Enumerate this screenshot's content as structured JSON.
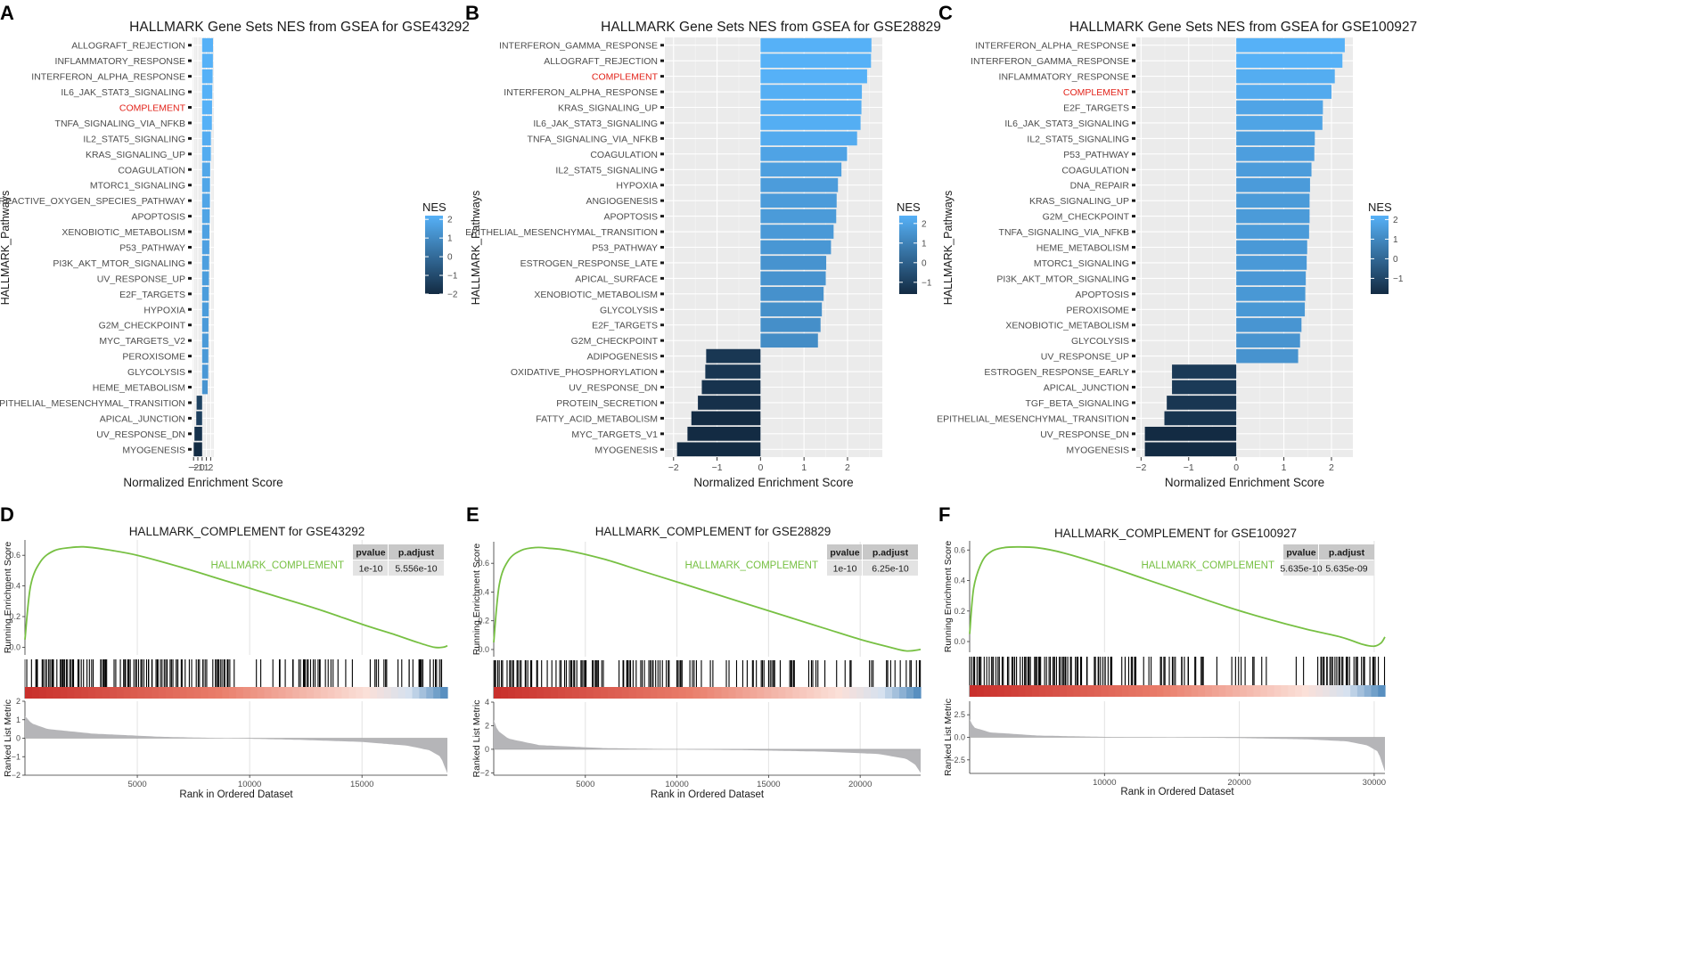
{
  "colors": {
    "panel_bg": "#ebebeb",
    "grid": "#ffffff",
    "highlight": "#e2231a",
    "nes_low": "#132b43",
    "nes_high": "#56b1f7",
    "running_line": "#77c043",
    "metric_fill": "#b5b5b8",
    "hit": "#000000",
    "table_header": "#c8c8c8",
    "table_cell": "#e3e3e3"
  },
  "chart_data": [
    {
      "type": "bar",
      "panel_label": "A",
      "title": "HALLMARK Gene Sets NES from GSEA for GSE43292",
      "xlabel": "Normalized Enrichment Score",
      "ylabel": "HALLMARK_Pathways",
      "xlim": [
        -2.25,
        2.75
      ],
      "x_ticks": [
        -2,
        -1,
        0,
        1,
        2
      ],
      "highlight": "COMPLEMENT",
      "legend": {
        "title": "NES",
        "ticks": [
          2,
          1,
          0,
          -1,
          -2
        ],
        "range": [
          -2,
          2.2
        ]
      },
      "categories": [
        "ALLOGRAFT_REJECTION",
        "INFLAMMATORY_RESPONSE",
        "INTERFERON_ALPHA_RESPONSE",
        "IL6_JAK_STAT3_SIGNALING",
        "COMPLEMENT",
        "TNFA_SIGNALING_VIA_NFKB",
        "IL2_STAT5_SIGNALING",
        "KRAS_SIGNALING_UP",
        "COAGULATION",
        "MTORC1_SIGNALING",
        "REACTIVE_OXYGEN_SPECIES_PATHWAY",
        "APOPTOSIS",
        "XENOBIOTIC_METABOLISM",
        "P53_PATHWAY",
        "PI3K_AKT_MTOR_SIGNALING",
        "UV_RESPONSE_UP",
        "E2F_TARGETS",
        "HYPOXIA",
        "G2M_CHECKPOINT",
        "MYC_TARGETS_V2",
        "PEROXISOME",
        "GLYCOLYSIS",
        "HEME_METABOLISM",
        "EPITHELIAL_MESENCHYMAL_TRANSITION",
        "APICAL_JUNCTION",
        "UV_RESPONSE_DN",
        "MYOGENESIS"
      ],
      "values": [
        2.54,
        2.52,
        2.46,
        2.38,
        2.32,
        2.28,
        2.05,
        2.04,
        1.88,
        1.84,
        1.82,
        1.78,
        1.7,
        1.68,
        1.63,
        1.6,
        1.56,
        1.54,
        1.49,
        1.48,
        1.46,
        1.43,
        1.3,
        -1.29,
        -1.37,
        -1.79,
        -1.97
      ]
    },
    {
      "type": "bar",
      "panel_label": "B",
      "title": "HALLMARK Gene Sets NES from GSEA for GSE28829",
      "xlabel": "Normalized Enrichment Score",
      "ylabel": "HALLMARK_Pathways",
      "xlim": [
        -2.2,
        2.8
      ],
      "x_ticks": [
        -2,
        -1,
        0,
        1,
        2
      ],
      "highlight": "COMPLEMENT",
      "legend": {
        "title": "NES",
        "ticks": [
          2,
          1,
          0,
          -1
        ],
        "range": [
          -1.6,
          2.4
        ]
      },
      "categories": [
        "INTERFERON_GAMMA_RESPONSE",
        "ALLOGRAFT_REJECTION",
        "COMPLEMENT",
        "INTERFERON_ALPHA_RESPONSE",
        "KRAS_SIGNALING_UP",
        "IL6_JAK_STAT3_SIGNALING",
        "TNFA_SIGNALING_VIA_NFKB",
        "COAGULATION",
        "IL2_STAT5_SIGNALING",
        "HYPOXIA",
        "ANGIOGENESIS",
        "APOPTOSIS",
        "EPITHELIAL_MESENCHYMAL_TRANSITION",
        "P53_PATHWAY",
        "ESTROGEN_RESPONSE_LATE",
        "APICAL_SURFACE",
        "XENOBIOTIC_METABOLISM",
        "GLYCOLYSIS",
        "E2F_TARGETS",
        "G2M_CHECKPOINT",
        "ADIPOGENESIS",
        "OXIDATIVE_PHOSPHORYLATION",
        "UV_RESPONSE_DN",
        "PROTEIN_SECRETION",
        "FATTY_ACID_METABOLISM",
        "MYC_TARGETS_V1",
        "MYOGENESIS"
      ],
      "values": [
        2.55,
        2.54,
        2.45,
        2.33,
        2.32,
        2.3,
        2.22,
        1.99,
        1.86,
        1.78,
        1.75,
        1.74,
        1.68,
        1.62,
        1.51,
        1.5,
        1.45,
        1.41,
        1.38,
        1.32,
        -1.25,
        -1.27,
        -1.35,
        -1.44,
        -1.59,
        -1.68,
        -1.92
      ]
    },
    {
      "type": "bar",
      "panel_label": "C",
      "title": "HALLMARK Gene Sets NES from GSEA for GSE100927",
      "xlabel": "Normalized Enrichment Score",
      "ylabel": "HALLMARK_Pathways",
      "xlim": [
        -2.1,
        2.45
      ],
      "x_ticks": [
        -2,
        -1,
        0,
        1,
        2
      ],
      "highlight": "COMPLEMENT",
      "legend": {
        "title": "NES",
        "ticks": [
          2,
          1,
          0,
          -1
        ],
        "range": [
          -1.8,
          2.2
        ]
      },
      "categories": [
        "INTERFERON_ALPHA_RESPONSE",
        "INTERFERON_GAMMA_RESPONSE",
        "INFLAMMATORY_RESPONSE",
        "COMPLEMENT",
        "E2F_TARGETS",
        "IL6_JAK_STAT3_SIGNALING",
        "IL2_STAT5_SIGNALING",
        "P53_PATHWAY",
        "COAGULATION",
        "DNA_REPAIR",
        "KRAS_SIGNALING_UP",
        "G2M_CHECKPOINT",
        "TNFA_SIGNALING_VIA_NFKB",
        "HEME_METABOLISM",
        "MTORC1_SIGNALING",
        "PI3K_AKT_MTOR_SIGNALING",
        "APOPTOSIS",
        "PEROXISOME",
        "XENOBIOTIC_METABOLISM",
        "GLYCOLYSIS",
        "UV_RESPONSE_UP",
        "ESTROGEN_RESPONSE_EARLY",
        "APICAL_JUNCTION",
        "TGF_BETA_SIGNALING",
        "EPITHELIAL_MESENCHYMAL_TRANSITION",
        "UV_RESPONSE_DN",
        "MYOGENESIS"
      ],
      "values": [
        2.28,
        2.23,
        2.07,
        2.0,
        1.82,
        1.81,
        1.65,
        1.64,
        1.58,
        1.55,
        1.54,
        1.54,
        1.53,
        1.49,
        1.48,
        1.46,
        1.45,
        1.44,
        1.37,
        1.34,
        1.3,
        -1.35,
        -1.35,
        -1.46,
        -1.51,
        -1.92,
        -1.92
      ]
    },
    {
      "type": "line",
      "subtype": "gsea_enrichment",
      "panel_label": "D",
      "title": "HALLMARK_COMPLEMENT for GSE43292",
      "series_name": "HALLMARK_COMPLEMENT",
      "table": {
        "headers": [
          "pvalue",
          "p.adjust"
        ],
        "row": [
          "1e-10",
          "5.556e-10"
        ]
      },
      "ylabel_top": "Running Enrichment Score",
      "ylabel_bottom": "Ranked List Metric",
      "xlabel": "Rank in Ordered Dataset",
      "xlim": [
        0,
        18800
      ],
      "x_ticks": [
        5000,
        10000,
        15000
      ],
      "es_ylim": [
        -0.05,
        0.7
      ],
      "es_ticks": [
        0.0,
        0.2,
        0.4,
        0.6
      ],
      "es_curve": {
        "x": [
          0,
          250,
          700,
          1300,
          2000,
          2600,
          3500,
          5000,
          7000,
          9000,
          11000,
          13000,
          15000,
          16500,
          17500,
          18200,
          18600,
          18800
        ],
        "y": [
          0.05,
          0.4,
          0.56,
          0.63,
          0.65,
          0.655,
          0.64,
          0.6,
          0.52,
          0.43,
          0.34,
          0.25,
          0.15,
          0.08,
          0.03,
          0.0,
          0.0,
          0.01
        ]
      },
      "metric_ylim": [
        -2,
        2
      ],
      "metric_ticks": [
        -2,
        -1,
        0,
        1,
        2
      ],
      "metric_curve": {
        "x": [
          0,
          300,
          1000,
          3000,
          6000,
          9000,
          12000,
          15000,
          17000,
          18000,
          18500,
          18800
        ],
        "y": [
          1.2,
          0.8,
          0.5,
          0.25,
          0.08,
          0.0,
          -0.08,
          -0.2,
          -0.4,
          -0.65,
          -1.0,
          -1.9
        ]
      },
      "hit_density": [
        [
          0,
          0.8,
          0.6
        ],
        [
          0.8,
          9.5,
          0.55
        ],
        [
          9.5,
          10.5,
          0.05
        ],
        [
          10.5,
          14,
          0.3
        ],
        [
          14,
          17,
          0.25
        ],
        [
          17,
          18.8,
          0.35
        ]
      ]
    },
    {
      "type": "line",
      "subtype": "gsea_enrichment",
      "panel_label": "E",
      "title": "HALLMARK_COMPLEMENT for GSE28829",
      "series_name": "HALLMARK_COMPLEMENT",
      "table": {
        "headers": [
          "pvalue",
          "p.adjust"
        ],
        "row": [
          "1e-10",
          "6.25e-10"
        ]
      },
      "ylabel_top": "Running Enrichment Score",
      "ylabel_bottom": "Ranked List Metric",
      "xlabel": "Rank in Ordered Dataset",
      "xlim": [
        0,
        23300
      ],
      "x_ticks": [
        5000,
        10000,
        15000,
        20000
      ],
      "es_ylim": [
        -0.05,
        0.75
      ],
      "es_ticks": [
        0.0,
        0.2,
        0.4,
        0.6
      ],
      "es_curve": {
        "x": [
          0,
          300,
          800,
          1500,
          2300,
          3000,
          4000,
          6000,
          8000,
          10000,
          12000,
          14000,
          16000,
          18000,
          20000,
          21500,
          22500,
          23300
        ],
        "y": [
          0.05,
          0.45,
          0.62,
          0.69,
          0.71,
          0.705,
          0.69,
          0.63,
          0.55,
          0.47,
          0.39,
          0.31,
          0.23,
          0.15,
          0.07,
          0.02,
          -0.01,
          0.0
        ]
      },
      "metric_ylim": [
        -2.2,
        4
      ],
      "metric_ticks": [
        -2,
        0,
        2,
        4
      ],
      "metric_curve": {
        "x": [
          0,
          200,
          800,
          2500,
          6000,
          10000,
          14000,
          18000,
          21000,
          22500,
          23000,
          23300
        ],
        "y": [
          2.5,
          1.6,
          0.9,
          0.35,
          0.1,
          0.0,
          -0.08,
          -0.2,
          -0.4,
          -0.8,
          -1.3,
          -2.0
        ]
      },
      "hit_density": [
        [
          0,
          1,
          0.6
        ],
        [
          1,
          5,
          0.55
        ],
        [
          5,
          11,
          0.4
        ],
        [
          11,
          13,
          0.2
        ],
        [
          13,
          18,
          0.3
        ],
        [
          18,
          20.5,
          0.08
        ],
        [
          20.5,
          23.3,
          0.3
        ]
      ]
    },
    {
      "type": "line",
      "subtype": "gsea_enrichment",
      "panel_label": "F",
      "title": "HALLMARK_COMPLEMENT for GSE100927",
      "series_name": "HALLMARK_COMPLEMENT",
      "table": {
        "headers": [
          "pvalue",
          "p.adjust"
        ],
        "row": [
          "5.635e-10",
          "5.635e-09"
        ]
      },
      "ylabel_top": "Running Enrichment Score",
      "ylabel_bottom": "Ranked List Metric",
      "xlabel": "Rank in Ordered Dataset",
      "xlim": [
        0,
        30800
      ],
      "x_ticks": [
        10000,
        20000,
        30000
      ],
      "es_ylim": [
        -0.07,
        0.66
      ],
      "es_ticks": [
        0.0,
        0.2,
        0.4,
        0.6
      ],
      "es_curve": {
        "x": [
          0,
          300,
          900,
          1600,
          2500,
          3500,
          5000,
          7000,
          10000,
          13000,
          16000,
          19000,
          22000,
          25000,
          27500,
          29200,
          30000,
          30500,
          30800
        ],
        "y": [
          0.05,
          0.35,
          0.52,
          0.59,
          0.615,
          0.62,
          0.615,
          0.58,
          0.5,
          0.41,
          0.32,
          0.23,
          0.15,
          0.08,
          0.03,
          -0.02,
          -0.03,
          -0.01,
          0.03
        ]
      },
      "metric_ylim": [
        -4,
        4
      ],
      "metric_ticks": [
        -2.5,
        0.0,
        2.5
      ],
      "metric_curve": {
        "x": [
          0,
          300,
          1500,
          5000,
          10000,
          15000,
          20000,
          25000,
          28000,
          29500,
          30300,
          30800
        ],
        "y": [
          2.0,
          1.1,
          0.55,
          0.2,
          0.05,
          0.0,
          -0.08,
          -0.22,
          -0.45,
          -0.9,
          -1.6,
          -3.8
        ]
      },
      "hit_density": [
        [
          0,
          1,
          0.6
        ],
        [
          1,
          9,
          0.55
        ],
        [
          9,
          15,
          0.3
        ],
        [
          15,
          20,
          0.3
        ],
        [
          20,
          26,
          0.15
        ],
        [
          26,
          30.8,
          0.35
        ]
      ]
    }
  ]
}
